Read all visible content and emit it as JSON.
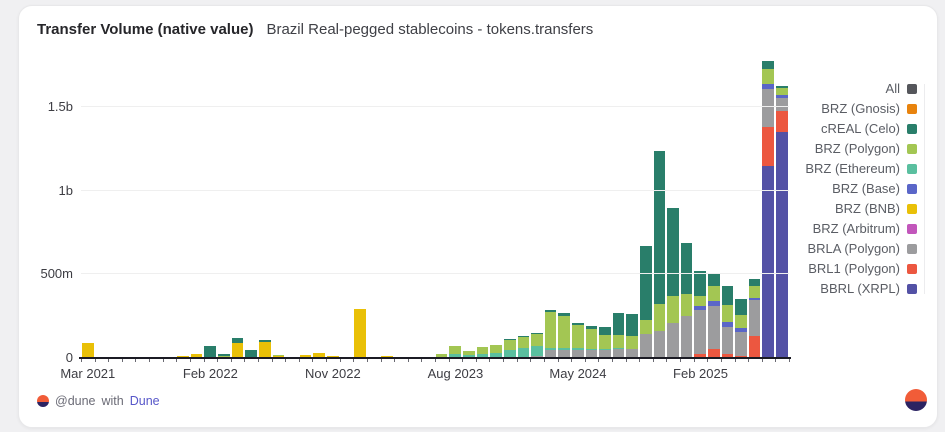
{
  "header": {
    "title": "Transfer Volume (native value)",
    "subtitle": "Brazil Real-pegged stablecoins - tokens.transfers"
  },
  "footer": {
    "handle": "@dune",
    "connector": "with",
    "brand": "Dune"
  },
  "chart_data": {
    "type": "bar",
    "stacked": true,
    "title": "Transfer Volume (native value)",
    "subtitle": "Brazil Real-pegged stablecoins - tokens.transfers",
    "unit": "native token amount, m = millions, b = billions",
    "grid": true,
    "legend_position": "right",
    "y_axis_max": 1805,
    "y_ticks": [
      {
        "label": "0",
        "value": 0
      },
      {
        "label": "500m",
        "value": 500
      },
      {
        "label": "1b",
        "value": 1000
      },
      {
        "label": "1.5b",
        "value": 1500
      }
    ],
    "x_ticks": [
      {
        "label": "Mar 2021",
        "index": 0
      },
      {
        "label": "Feb 2022",
        "index": 9
      },
      {
        "label": "Nov 2022",
        "index": 18
      },
      {
        "label": "Aug 2023",
        "index": 27
      },
      {
        "label": "May 2024",
        "index": 36
      },
      {
        "label": "Feb 2025",
        "index": 45
      }
    ],
    "legend": [
      {
        "label": "All",
        "color": "#55565b"
      },
      {
        "label": "BRZ (Gnosis)",
        "color": "#e8830d"
      },
      {
        "label": "cREAL (Celo)",
        "color": "#297e6a"
      },
      {
        "label": "BRZ (Polygon)",
        "color": "#a3c653"
      },
      {
        "label": "BRZ (Ethereum)",
        "color": "#5abf9f"
      },
      {
        "label": "BRZ (Base)",
        "color": "#5a66c8"
      },
      {
        "label": "BRZ (BNB)",
        "color": "#e9c007"
      },
      {
        "label": "BRZ (Arbitrum)",
        "color": "#c256bb"
      },
      {
        "label": "BRLA (Polygon)",
        "color": "#9c9c9e"
      },
      {
        "label": "BRL1 (Polygon)",
        "color": "#ec5740"
      },
      {
        "label": "BBRL (XRPL)",
        "color": "#5351a5"
      }
    ],
    "series_stack_order": "bottom to top",
    "series": [
      {
        "name": "BBRL (XRPL)",
        "color": "#5351a5",
        "values": [
          0,
          0,
          0,
          0,
          0,
          0,
          0,
          0,
          0,
          0,
          0,
          0,
          0,
          0,
          0,
          0,
          0,
          0,
          0,
          0,
          0,
          0,
          0,
          0,
          0,
          0,
          0,
          0,
          0,
          0,
          0,
          0,
          0,
          0,
          0,
          0,
          0,
          0,
          0,
          0,
          0,
          0,
          0,
          0,
          0,
          0,
          0,
          0,
          0,
          0,
          1150,
          1350
        ]
      },
      {
        "name": "BRL1 (Polygon)",
        "color": "#ec5740",
        "values": [
          0,
          0,
          0,
          0,
          0,
          0,
          0,
          0,
          0,
          0,
          0,
          0,
          0,
          0,
          0,
          0,
          0,
          0,
          0,
          0,
          0,
          0,
          0,
          0,
          0,
          0,
          0,
          0,
          0,
          0,
          0,
          0,
          0,
          0,
          0,
          0,
          0,
          0,
          0,
          0,
          0,
          0,
          0,
          0,
          0,
          25,
          52,
          22,
          10,
          132,
          230,
          125
        ]
      },
      {
        "name": "BRLA (Polygon)",
        "color": "#9c9c9e",
        "values": [
          0,
          0,
          0,
          0,
          0,
          0,
          0,
          0,
          0,
          0,
          0,
          0,
          0,
          0,
          0,
          0,
          0,
          0,
          0,
          0,
          0,
          0,
          0,
          0,
          0,
          0,
          0,
          0,
          0,
          0,
          0,
          0,
          0,
          10,
          45,
          48,
          50,
          45,
          48,
          52,
          55,
          145,
          160,
          210,
          250,
          265,
          260,
          165,
          145,
          212,
          230,
          80
        ]
      },
      {
        "name": "BRZ (Arbitrum)",
        "color": "#c256bb",
        "values": [
          0,
          0,
          0,
          0,
          0,
          0,
          0,
          0,
          0,
          0,
          0,
          0,
          0,
          0,
          0,
          0,
          0,
          0,
          0,
          0,
          0,
          0,
          0,
          0,
          0,
          0,
          0,
          0,
          0,
          0,
          0,
          0,
          0,
          0,
          0,
          0,
          0,
          0,
          0,
          0,
          0,
          0,
          0,
          0,
          0,
          0,
          0,
          0,
          0,
          0,
          0,
          0
        ]
      },
      {
        "name": "BRZ (BNB)",
        "color": "#e9c007",
        "values": [
          88,
          2,
          2,
          1,
          1,
          1,
          2,
          10,
          22,
          0,
          0,
          88,
          0,
          98,
          10,
          5,
          20,
          30,
          12,
          8,
          290,
          8,
          12,
          8,
          5,
          6,
          8,
          6,
          4,
          4,
          4,
          5,
          4,
          4,
          3,
          0,
          0,
          0,
          0,
          0,
          0,
          0,
          0,
          0,
          0,
          0,
          0,
          0,
          0,
          0,
          0,
          0
        ]
      },
      {
        "name": "BRZ (Base)",
        "color": "#5a66c8",
        "values": [
          0,
          0,
          0,
          0,
          0,
          0,
          0,
          0,
          0,
          0,
          0,
          0,
          0,
          0,
          0,
          0,
          0,
          0,
          0,
          0,
          0,
          0,
          0,
          0,
          0,
          0,
          0,
          0,
          0,
          0,
          0,
          0,
          0,
          0,
          0,
          0,
          0,
          0,
          0,
          0,
          0,
          0,
          0,
          0,
          0,
          20,
          30,
          30,
          25,
          14,
          30,
          16
        ]
      },
      {
        "name": "BRZ (Ethereum)",
        "color": "#5abf9f",
        "values": [
          0,
          0,
          0,
          0,
          0,
          0,
          0,
          0,
          0,
          0,
          0,
          0,
          0,
          0,
          0,
          0,
          0,
          0,
          0,
          0,
          0,
          0,
          0,
          0,
          0,
          0,
          0,
          18,
          12,
          18,
          28,
          40,
          55,
          60,
          12,
          10,
          8,
          6,
          5,
          5,
          0,
          0,
          0,
          0,
          0,
          0,
          0,
          0,
          0,
          0,
          0,
          0
        ]
      },
      {
        "name": "BRZ (Polygon)",
        "color": "#a3c653",
        "values": [
          0,
          0,
          0,
          0,
          0,
          0,
          0,
          0,
          0,
          0,
          10,
          0,
          0,
          0,
          7,
          0,
          0,
          0,
          0,
          0,
          0,
          0,
          0,
          0,
          0,
          0,
          18,
          46,
          26,
          44,
          46,
          62,
          66,
          72,
          215,
          195,
          140,
          125,
          85,
          78,
          78,
          85,
          160,
          160,
          130,
          60,
          90,
          100,
          80,
          70,
          90,
          45
        ]
      },
      {
        "name": "cREAL (Celo)",
        "color": "#297e6a",
        "values": [
          0,
          0,
          0,
          0,
          0,
          0,
          0,
          0,
          0,
          70,
          14,
          32,
          50,
          8,
          0,
          0,
          0,
          0,
          0,
          0,
          0,
          0,
          0,
          0,
          0,
          0,
          0,
          0,
          0,
          0,
          0,
          6,
          5,
          6,
          15,
          17,
          12,
          14,
          45,
          137,
          130,
          440,
          920,
          525,
          310,
          150,
          70,
          113,
          90,
          44,
          45,
          12
        ]
      },
      {
        "name": "BRZ (Gnosis)",
        "color": "#e8830d",
        "values": [
          0,
          0,
          0,
          0,
          0,
          0,
          0,
          0,
          0,
          0,
          0,
          0,
          0,
          0,
          0,
          0,
          0,
          0,
          0,
          0,
          0,
          0,
          0,
          0,
          0,
          0,
          0,
          0,
          0,
          0,
          0,
          0,
          0,
          0,
          0,
          0,
          0,
          0,
          0,
          0,
          0,
          0,
          0,
          0,
          0,
          0,
          0,
          0,
          0,
          0,
          0,
          0
        ]
      }
    ]
  }
}
